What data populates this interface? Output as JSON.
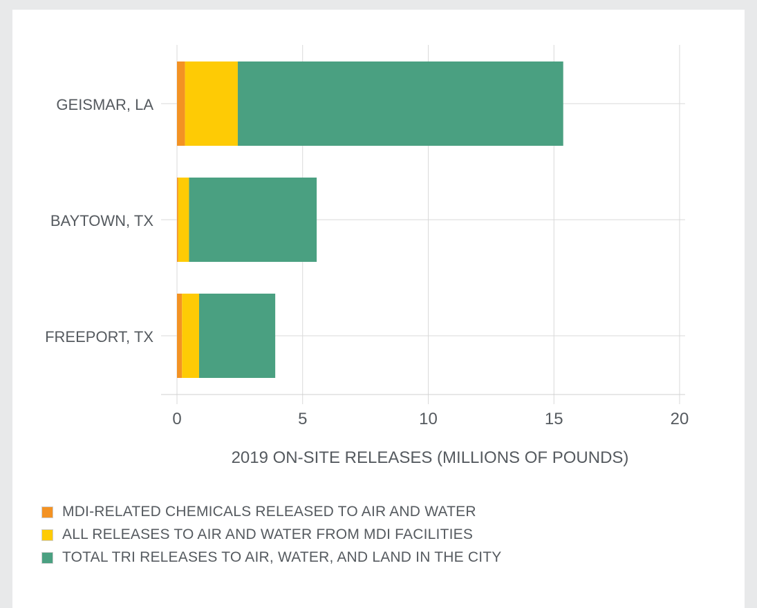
{
  "chart_data": {
    "type": "bar",
    "orientation": "horizontal",
    "stacked": true,
    "categories": [
      "GEISMAR, LA",
      "BAYTOWN, TX",
      "FREEPORT, TX"
    ],
    "series": [
      {
        "name": "MDI-RELATED CHEMICALS RELEASED TO AIR AND WATER",
        "color": "#f39223",
        "values": [
          0.32,
          0.05,
          0.2
        ]
      },
      {
        "name": "ALL RELEASES TO AIR AND WATER FROM MDI FACILITIES",
        "color": "#fecb05",
        "values": [
          2.1,
          0.43,
          0.68
        ]
      },
      {
        "name": "TOTAL TRI RELEASES TO AIR, WATER, AND LAND IN THE CITY",
        "color": "#4aa081",
        "values": [
          12.95,
          5.08,
          3.03
        ]
      }
    ],
    "xlabel": "2019 ON-SITE RELEASES (MILLIONS OF POUNDS)",
    "xlim": [
      0,
      20
    ],
    "xticks": [
      "0",
      "5",
      "10",
      "15",
      "20"
    ],
    "grid": true,
    "legend_position": "bottom-left"
  }
}
